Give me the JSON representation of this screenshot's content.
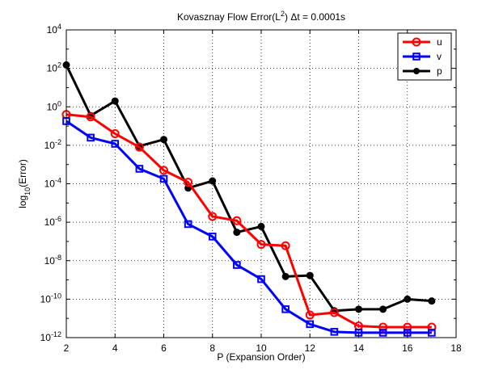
{
  "chart_data": {
    "type": "line",
    "title_main": "Kovasznay Flow Error(L",
    "title_sup": "2",
    "title_tail": ")  Δt = 0.0001s",
    "xlabel": "P (Expansion Order)",
    "ylabel_main": "log",
    "ylabel_sub": "10",
    "ylabel_tail": "(Error)",
    "xlim": [
      2,
      18
    ],
    "ylim_exp": [
      -12,
      4
    ],
    "log_y": true,
    "grid": true,
    "legend_position": "top-right",
    "x_ticks": [
      2,
      4,
      6,
      8,
      10,
      12,
      14,
      16,
      18
    ],
    "x_tick_labels": [
      "2",
      "4",
      "6",
      "8",
      "10",
      "12",
      "14",
      "16",
      "18"
    ],
    "y_tick_exps": [
      -12,
      -10,
      -8,
      -6,
      -4,
      -2,
      0,
      2,
      4
    ],
    "y_tick_labels": [
      {
        "base": "10",
        "exp": "-12"
      },
      {
        "base": "10",
        "exp": "-10"
      },
      {
        "base": "10",
        "exp": "-8"
      },
      {
        "base": "10",
        "exp": "-6"
      },
      {
        "base": "10",
        "exp": "-4"
      },
      {
        "base": "10",
        "exp": "-2"
      },
      {
        "base": "10",
        "exp": "0"
      },
      {
        "base": "10",
        "exp": "2"
      },
      {
        "base": "10",
        "exp": "4"
      }
    ],
    "x": [
      2,
      3,
      4,
      5,
      6,
      7,
      8,
      9,
      10,
      11,
      12,
      13,
      14,
      15,
      16,
      17
    ],
    "series": [
      {
        "name": "u",
        "color": "#ff0000",
        "marker": "circle",
        "values": [
          0.4,
          0.3,
          0.04,
          0.008,
          0.0005,
          0.00012,
          2e-06,
          1.2e-06,
          7e-08,
          6e-08,
          1.5e-11,
          2e-11,
          4e-12,
          3.5e-12,
          3.5e-12,
          3.5e-12
        ]
      },
      {
        "name": "v",
        "color": "#0000ff",
        "marker": "square",
        "values": [
          0.18,
          0.025,
          0.012,
          0.0006,
          0.00018,
          8e-07,
          1.8e-07,
          6e-09,
          1.1e-09,
          3e-11,
          5e-12,
          2e-12,
          1.8e-12,
          1.8e-12,
          1.8e-12,
          1.8e-12
        ]
      },
      {
        "name": "p",
        "color": "#000000",
        "marker": "dot",
        "values": [
          150,
          0.35,
          2,
          0.009,
          0.02,
          6e-05,
          0.00014,
          3e-07,
          6e-07,
          1.5e-09,
          1.7e-09,
          2.5e-11,
          3e-11,
          3e-11,
          1e-10,
          8e-11
        ]
      }
    ]
  }
}
